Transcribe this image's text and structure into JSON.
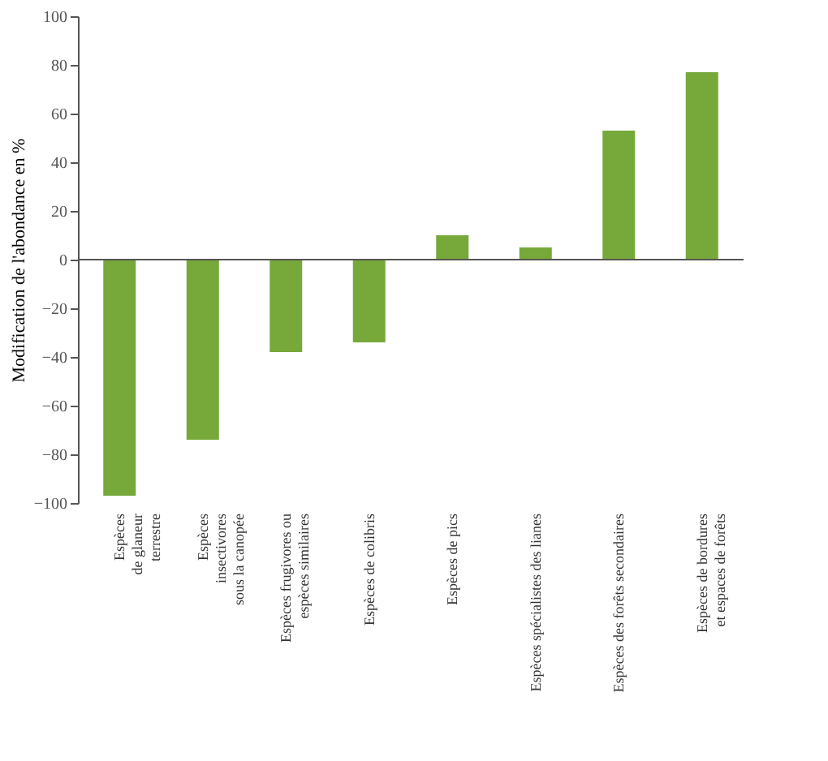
{
  "chart_data": {
    "type": "bar",
    "ylabel": "Modification de l'abondance en %",
    "categories": [
      "Espèces\nde glaneur\nterrestre",
      "Espèces\ninsectivores\nsous la canopée",
      "Espèces frugivores ou\nespèces similaires",
      "Espèces de colibris",
      "Espèces de pics",
      "Espèces spécialistes des lianes",
      "Espèces des forêts secondaires",
      "Espèces de bordures\net espaces de forêts"
    ],
    "values": [
      -97,
      -74,
      -38,
      -34,
      10,
      5,
      53,
      77
    ],
    "color": "#77a83a",
    "ylim": [
      -100,
      100
    ],
    "yticks": [
      -100,
      -80,
      -60,
      -40,
      -20,
      0,
      20,
      40,
      60,
      80,
      100
    ],
    "tick_labels": true
  }
}
